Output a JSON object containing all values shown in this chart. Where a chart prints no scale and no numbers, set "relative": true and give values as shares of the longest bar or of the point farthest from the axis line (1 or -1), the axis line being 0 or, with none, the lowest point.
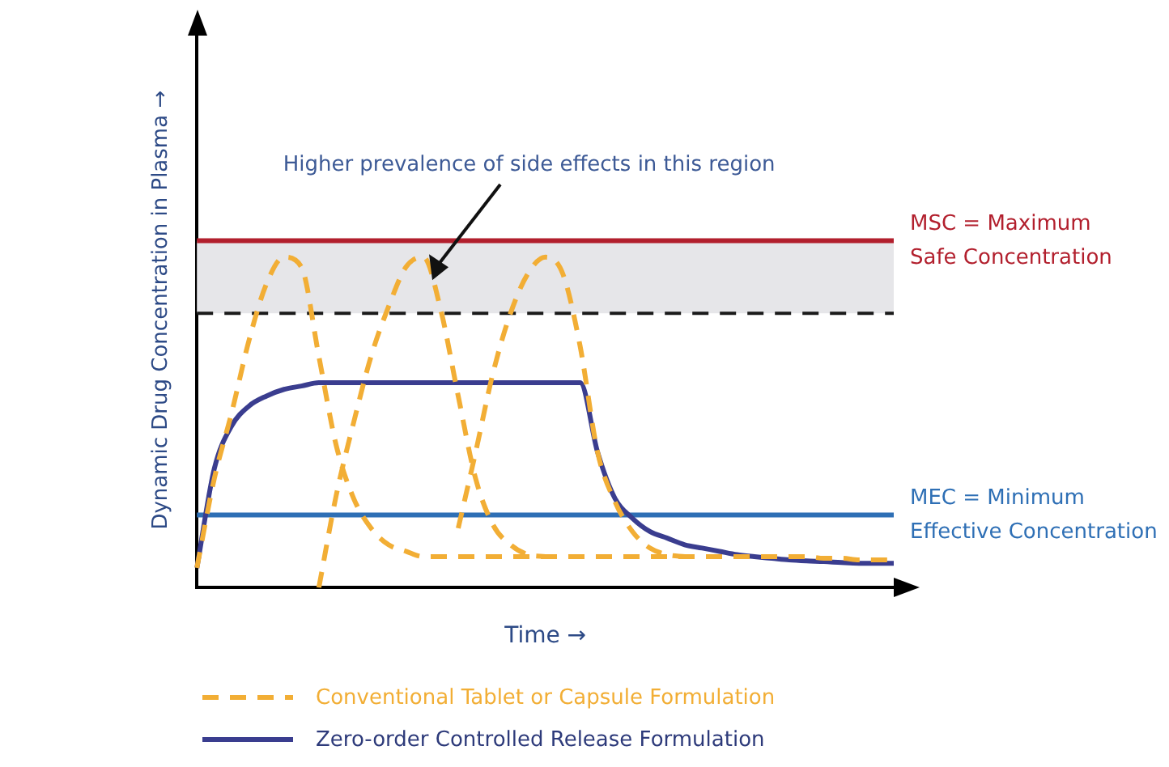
{
  "chart_data": {
    "type": "line",
    "relative": true,
    "xlabel": "Time →",
    "ylabel": "Dynamic Drug Concentration in Plasma →",
    "marker": "none",
    "legend": "bottom",
    "grid": false,
    "categories": [
      null,
      null,
      null,
      null,
      null,
      null,
      null,
      null,
      null,
      null,
      null,
      null,
      null,
      null,
      null,
      null,
      null,
      null,
      null,
      null,
      null,
      null,
      null,
      null,
      null,
      null,
      null,
      null,
      null,
      null,
      null,
      null,
      null,
      null,
      null,
      null,
      null,
      null,
      null,
      null,
      null
    ],
    "series": [
      {
        "name": "Conventional Tablet or Capsule Formulation",
        "color": "#f2ae35",
        "line_style": "dashed",
        "values": [
          0.06,
          0.33,
          0.53,
          0.75,
          0.92,
          1,
          0.97,
          0.7,
          0.43,
          0.27,
          0.18,
          0.13,
          0.11,
          0.094,
          0.094,
          0.094,
          0.094,
          0.094,
          0.094,
          0.094,
          0.094,
          0.094,
          0.094,
          0.094,
          0.094,
          0.094,
          0.094,
          0.094,
          0.094,
          0.094,
          0.094,
          0.094,
          0.094,
          0.094,
          0.094,
          0.094,
          0.089,
          0.089,
          0.084,
          0.084,
          0.084
        ]
      },
      {
        "color": "#f2ae35",
        "line_style": "dashed",
        "values": [
          null,
          null,
          null,
          null,
          null,
          null,
          null,
          0,
          0.28,
          0.5,
          0.7,
          0.85,
          0.97,
          1,
          0.84,
          0.58,
          0.33,
          0.19,
          0.13,
          0.1,
          0.094,
          null,
          null,
          null,
          null,
          null,
          null,
          null,
          null,
          null,
          null,
          null,
          null,
          null,
          null,
          null,
          null,
          null,
          null,
          null,
          null
        ]
      },
      {
        "color": "#f2ae35",
        "line_style": "dashed",
        "values": [
          null,
          null,
          null,
          null,
          null,
          null,
          null,
          null,
          null,
          null,
          null,
          null,
          null,
          null,
          null,
          0.18,
          0.41,
          0.65,
          0.83,
          0.95,
          1,
          0.95,
          0.73,
          0.41,
          0.26,
          0.17,
          0.12,
          0.1,
          0.094,
          null,
          null,
          null,
          null,
          null,
          null,
          null,
          null,
          null,
          null,
          null,
          null
        ]
      },
      {
        "name": "Zero-order Controlled Release Formulation",
        "color": "#3a3d8f",
        "line_style": "solid",
        "values": [
          0.06,
          0.36,
          0.49,
          0.55,
          0.58,
          0.6,
          0.61,
          0.62,
          0.62,
          0.62,
          0.62,
          0.62,
          0.62,
          0.62,
          0.62,
          0.62,
          0.62,
          0.62,
          0.62,
          0.62,
          0.62,
          0.62,
          0.62,
          0.41,
          0.27,
          0.21,
          0.17,
          0.15,
          0.13,
          0.12,
          0.11,
          0.1,
          0.094,
          0.089,
          0.084,
          0.081,
          0.079,
          0.076,
          0.074,
          0.074,
          0.074
        ]
      }
    ],
    "bands": [
      {
        "axis": "y",
        "from": 0.83,
        "to": 1.05,
        "color": "#e6e6e9"
      }
    ],
    "ref_lines": [
      {
        "axis": "y",
        "value": 1.05,
        "label": "MSC = Maximum Safe Concentration",
        "color": "#b21f2d",
        "line_style": "solid"
      },
      {
        "axis": "y",
        "value": 0.83,
        "color": "#1a1a1a",
        "line_style": "dashed"
      },
      {
        "axis": "y",
        "value": 0.22,
        "label": "MEC = Minimum Effective Concentration",
        "color": "#2e6fb5",
        "line_style": "solid"
      }
    ],
    "annotations": [
      "Higher prevalence of side effects in this region"
    ]
  }
}
